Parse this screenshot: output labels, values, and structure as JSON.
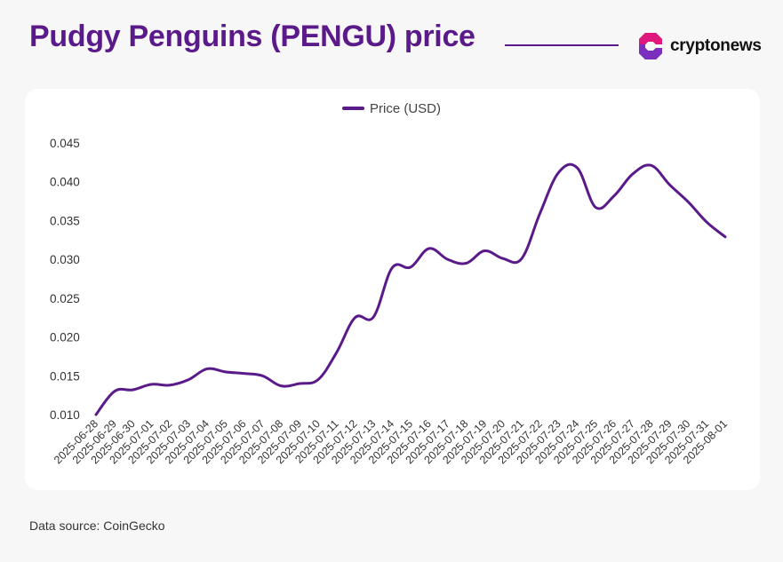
{
  "header": {
    "title": "Pudgy Penguins (PENGU) price",
    "brand_name": "cryptonews",
    "brand_colors": {
      "primary": "#5a1a8a",
      "accent": "#e0177d",
      "dark": "#2a0f4a"
    }
  },
  "footer": {
    "source": "Data source: CoinGecko"
  },
  "chart_data": {
    "type": "line",
    "title": "Pudgy Penguins (PENGU) price",
    "xlabel": "",
    "ylabel": "",
    "x": [
      "2025-06-28",
      "2025-06-29",
      "2025-06-30",
      "2025-07-01",
      "2025-07-02",
      "2025-07-03",
      "2025-07-04",
      "2025-07-05",
      "2025-07-06",
      "2025-07-07",
      "2025-07-08",
      "2025-07-09",
      "2025-07-10",
      "2025-07-11",
      "2025-07-12",
      "2025-07-13",
      "2025-07-14",
      "2025-07-15",
      "2025-07-16",
      "2025-07-17",
      "2025-07-18",
      "2025-07-19",
      "2025-07-20",
      "2025-07-21",
      "2025-07-22",
      "2025-07-23",
      "2025-07-24",
      "2025-07-25",
      "2025-07-26",
      "2025-07-27",
      "2025-07-28",
      "2025-07-29",
      "2025-07-30",
      "2025-07-31",
      "2025-08-01"
    ],
    "series": [
      {
        "name": "Price (USD)",
        "color": "#5a1a8a",
        "values": [
          0.01,
          0.013,
          0.0132,
          0.0139,
          0.0138,
          0.0145,
          0.0159,
          0.0155,
          0.0153,
          0.015,
          0.0137,
          0.014,
          0.0145,
          0.018,
          0.0225,
          0.0226,
          0.0289,
          0.029,
          0.0314,
          0.03,
          0.0295,
          0.0311,
          0.0301,
          0.0301,
          0.036,
          0.0412,
          0.0418,
          0.0367,
          0.0382,
          0.041,
          0.0421,
          0.0396,
          0.0374,
          0.0348,
          0.0329
        ]
      }
    ],
    "yticks": [
      "0.010",
      "0.015",
      "0.020",
      "0.025",
      "0.030",
      "0.035",
      "0.040",
      "0.045"
    ],
    "ylim": [
      0.01,
      0.045
    ],
    "grid": false,
    "legend": "top-center"
  }
}
